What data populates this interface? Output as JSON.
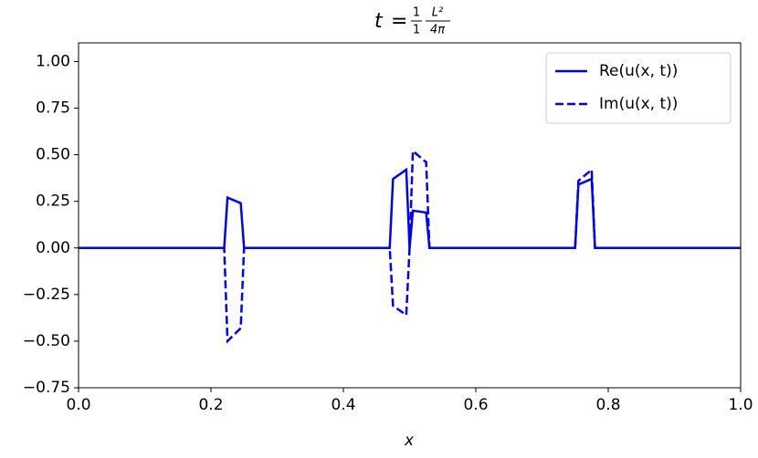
{
  "chart_data": {
    "type": "line",
    "title": {
      "variable": "t",
      "equals": "=",
      "fraction_1": {
        "numerator": "1",
        "denominator": "1"
      },
      "fraction_2": {
        "numerator": "L²",
        "denominator": "4π"
      }
    },
    "x_label": "x",
    "x": [
      0,
      0.22,
      0.225,
      0.245,
      0.25,
      0.47,
      0.475,
      0.495,
      0.5,
      0.505,
      0.525,
      0.53,
      0.75,
      0.755,
      0.775,
      0.78,
      1
    ],
    "series": [
      {
        "name": "Re(u(x, t))",
        "color": "#0000ff",
        "linestyle": "solid",
        "values": [
          0,
          0,
          0.27,
          0.24,
          0,
          0,
          0.37,
          0.42,
          0,
          0.2,
          0.19,
          0,
          0,
          0.34,
          0.37,
          0,
          0
        ]
      },
      {
        "name": "Im(u(x, t))",
        "color": "#0000ff",
        "linestyle": "dashed",
        "values": [
          0,
          0,
          -0.5,
          -0.43,
          0,
          0,
          -0.31,
          -0.36,
          0,
          0.52,
          0.46,
          0,
          0,
          0.36,
          0.42,
          0,
          0
        ]
      }
    ],
    "xlim": [
      0,
      1
    ],
    "xticks": [
      {
        "value": 0,
        "label": "0.0"
      },
      0.2,
      0.4,
      0.6,
      0.8,
      {
        "value": 1,
        "label": "1.0"
      }
    ],
    "ylim": [
      -0.75,
      1.1
    ],
    "yticks": [
      {
        "value": -0.75,
        "label": "−0.75"
      },
      {
        "value": -0.5,
        "label": "−0.50"
      },
      {
        "value": -0.25,
        "label": "−0.25"
      },
      {
        "value": 0,
        "label": "0.00"
      },
      0.25,
      {
        "value": 0.5,
        "label": "0.50"
      },
      0.75,
      {
        "value": 1,
        "label": "1.00"
      }
    ],
    "grid": false,
    "legend": "upper right"
  }
}
